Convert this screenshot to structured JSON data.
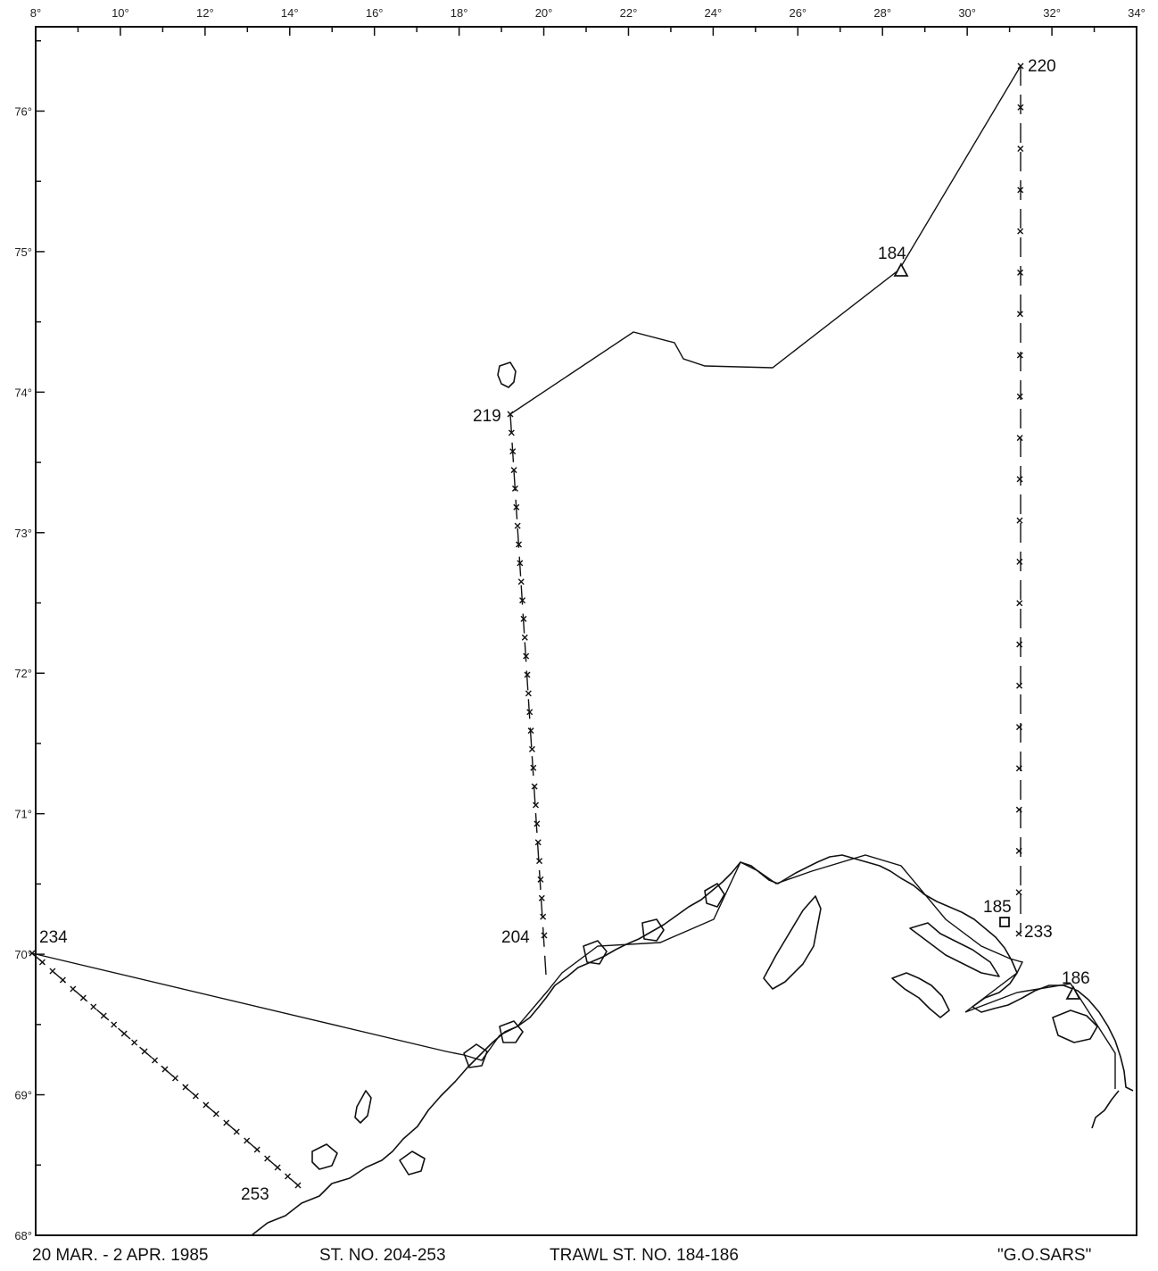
{
  "map": {
    "lon_range": [
      8,
      34
    ],
    "lat_range": [
      68,
      76.6
    ],
    "lon_ticks": [
      "8°",
      "10°",
      "12°",
      "14°",
      "16°",
      "18°",
      "20°",
      "22°",
      "24°",
      "26°",
      "28°",
      "30°",
      "32°",
      "34°"
    ],
    "lat_ticks": [
      "68°",
      "69°",
      "70°",
      "71°",
      "72°",
      "73°",
      "74°",
      "75°",
      "76°"
    ],
    "stations": [
      {
        "label": "220",
        "lon": 31.3,
        "lat": 76.3
      },
      {
        "label": "184",
        "lon": 28.4,
        "lat": 75.1
      },
      {
        "label": "219",
        "lon": 19.0,
        "lat": 74.2
      },
      {
        "label": "204",
        "lon": 19.9,
        "lat": 70.4
      },
      {
        "label": "234",
        "lon": 8.1,
        "lat": 70.4
      },
      {
        "label": "253",
        "lon": 14.1,
        "lat": 68.5
      },
      {
        "label": "185",
        "lon": 31.0,
        "lat": 70.6
      },
      {
        "label": "233",
        "lon": 31.3,
        "lat": 70.5
      },
      {
        "label": "186",
        "lon": 32.4,
        "lat": 70.0
      }
    ],
    "symbol_colors": {
      "line": "#111111",
      "background": "#ffffff"
    }
  },
  "footer": {
    "date": "20 MAR. - 2 APR. 1985",
    "stations": "ST. NO. 204-253",
    "trawl": "TRAWL ST. NO. 184-186",
    "vessel": "\"G.O.SARS\""
  }
}
